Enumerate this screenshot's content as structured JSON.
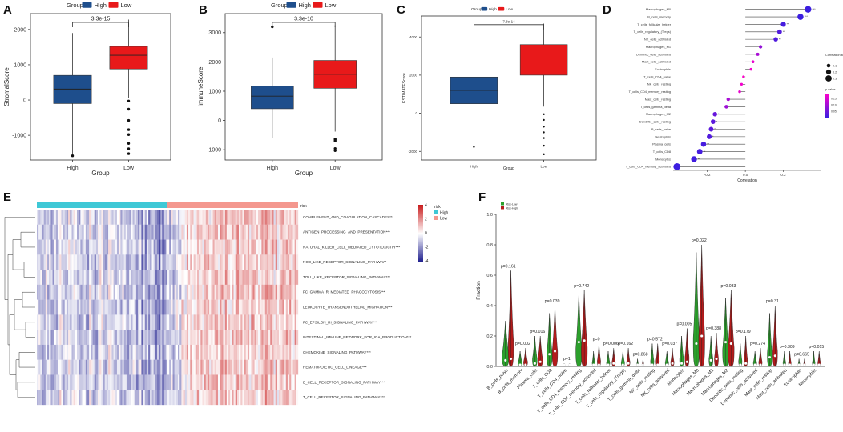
{
  "panels": {
    "A": "A",
    "B": "B",
    "C": "C",
    "D": "D",
    "E": "E",
    "F": "F"
  },
  "colors": {
    "high": "#1e4e8c",
    "low": "#e8191a",
    "heat_low": "#1a1a8c",
    "heat_mid": "#ffffff",
    "heat_high": "#c8191a",
    "risk_high": "#3ec8d6",
    "risk_low": "#f4978e",
    "violin_low": "#2ca02c",
    "violin_high": "#b31b1b",
    "pval_low": "#ff00cc",
    "pval_high": "#3b1ee0"
  },
  "legend": {
    "group_title": "Group",
    "high": "High",
    "low": "Low"
  },
  "chart_data": [
    {
      "id": "A",
      "type": "box",
      "title": "",
      "xlabel": "Group",
      "ylabel": "StromalScore",
      "categories": [
        "High",
        "Low"
      ],
      "ylim": [
        -1700,
        2450
      ],
      "yticks": [
        -1000,
        0,
        1000,
        2000
      ],
      "pvalue": "3.3e-15",
      "boxes": [
        {
          "name": "High",
          "q1": -100,
          "median": 310,
          "q3": 700,
          "whisker_low": -1550,
          "whisker_high": 1900,
          "outliers": [
            -1580
          ]
        },
        {
          "name": "Low",
          "q1": 880,
          "median": 1270,
          "q3": 1520,
          "whisker_low": 60,
          "whisker_high": 2280,
          "outliers": [
            -30,
            -260,
            -580,
            -840,
            -980,
            -1230,
            -1380,
            -1520
          ]
        }
      ]
    },
    {
      "id": "B",
      "type": "box",
      "xlabel": "Group",
      "ylabel": "ImmuneScore",
      "categories": [
        "High",
        "Low"
      ],
      "ylim": [
        -1350,
        3650
      ],
      "yticks": [
        -1000,
        0,
        1000,
        2000,
        3000
      ],
      "pvalue": "3.3e-10",
      "boxes": [
        {
          "name": "High",
          "q1": 400,
          "median": 830,
          "q3": 1170,
          "whisker_low": -600,
          "whisker_high": 2150,
          "outliers": [
            3200
          ]
        },
        {
          "name": "Low",
          "q1": 1100,
          "median": 1580,
          "q3": 2050,
          "whisker_low": -380,
          "whisker_high": 3250,
          "outliers": [
            -630,
            -660,
            -700,
            -960,
            -1030
          ]
        }
      ]
    },
    {
      "id": "C",
      "type": "box",
      "xlabel": "Group",
      "ylabel": "ESTIMATEScore",
      "categories": [
        "High",
        "Low"
      ],
      "ylim": [
        -2450,
        5100
      ],
      "yticks": [
        -2000,
        0,
        2000,
        4000
      ],
      "pvalue": "7.8e-14",
      "boxes": [
        {
          "name": "High",
          "q1": 500,
          "median": 1200,
          "q3": 1900,
          "whisker_low": -1100,
          "whisker_high": 3700,
          "outliers": [
            -1760
          ]
        },
        {
          "name": "Low",
          "q1": 2000,
          "median": 2900,
          "q3": 3600,
          "whisker_low": 350,
          "whisker_high": 4700,
          "outliers": [
            -50,
            -350,
            -700,
            -1000,
            -1300,
            -1700,
            -2150
          ]
        }
      ]
    },
    {
      "id": "D",
      "type": "lollipop",
      "xlabel": "Correlation",
      "xlim": [
        -0.38,
        0.4
      ],
      "xticks": [
        -0.2,
        0.0,
        0.2
      ],
      "xtick_labels": [
        "-0.2",
        "0.0",
        "0.2"
      ],
      "size_legend_title": "Correlation strength",
      "size_legend": [
        "0.1",
        "0.2",
        "0.3"
      ],
      "color_legend_title": "p-value",
      "color_legend": [
        "0.05",
        "0.10",
        "0.15"
      ],
      "items": [
        {
          "name": "Macrophages_M0",
          "r": 0.33,
          "p": 0.001,
          "sig": "***"
        },
        {
          "name": "B_cells_memory",
          "r": 0.29,
          "p": 0.001,
          "sig": "***"
        },
        {
          "name": "T_cells_follicular_helper",
          "r": 0.2,
          "p": 0.01,
          "sig": "**"
        },
        {
          "name": "T_cells_regulatory_(Tregs)",
          "r": 0.18,
          "p": 0.02,
          "sig": "**"
        },
        {
          "name": "NK_cells_activated",
          "r": 0.16,
          "p": 0.02,
          "sig": "**"
        },
        {
          "name": "Macrophages_M1",
          "r": 0.08,
          "p": 0.08,
          "sig": ""
        },
        {
          "name": "Dendritic_cells_activated",
          "r": 0.065,
          "p": 0.1,
          "sig": ""
        },
        {
          "name": "Mast_cells_activated",
          "r": 0.04,
          "p": 0.16,
          "sig": ""
        },
        {
          "name": "Eosinophils",
          "r": 0.03,
          "p": 0.17,
          "sig": ""
        },
        {
          "name": "T_cells_CD4_naive",
          "r": -0.01,
          "p": 0.18,
          "sig": ""
        },
        {
          "name": "NK_cells_resting",
          "r": -0.02,
          "p": 0.17,
          "sig": ""
        },
        {
          "name": "T_cells_CD4_memory_resting",
          "r": -0.03,
          "p": 0.16,
          "sig": ""
        },
        {
          "name": "Mast_cells_resting",
          "r": -0.09,
          "p": 0.1,
          "sig": ""
        },
        {
          "name": "T_cells_gamma_delta",
          "r": -0.1,
          "p": 0.09,
          "sig": ""
        },
        {
          "name": "Macrophages_M2",
          "r": -0.16,
          "p": 0.04,
          "sig": "*"
        },
        {
          "name": "Dendritic_cells_resting",
          "r": -0.17,
          "p": 0.03,
          "sig": "*"
        },
        {
          "name": "B_cells_naive",
          "r": -0.18,
          "p": 0.03,
          "sig": "*"
        },
        {
          "name": "Neutrophils",
          "r": -0.19,
          "p": 0.02,
          "sig": "*"
        },
        {
          "name": "Plasma_cells",
          "r": -0.22,
          "p": 0.01,
          "sig": "**"
        },
        {
          "name": "T_cells_CD8",
          "r": -0.24,
          "p": 0.01,
          "sig": "**"
        },
        {
          "name": "Monocytes",
          "r": -0.27,
          "p": 0.005,
          "sig": "**"
        },
        {
          "name": "T_cells_CD4_memory_activated",
          "r": -0.36,
          "p": 0.001,
          "sig": "***"
        }
      ]
    },
    {
      "id": "E",
      "type": "heatmap",
      "annotation_title": "risk",
      "annotation_legend": [
        "High",
        "Low"
      ],
      "colorbar_ticks": [
        "4",
        "2",
        "0",
        "-2",
        "-4"
      ],
      "rows": [
        "COMPLEMENT_AND_COAGULATION_CASCADES**",
        "ANTIGEN_PROCESSING_AND_PRESENTATION***",
        "NATURAL_KILLER_CELL_MEDIATED_CYTOTOXICITY***",
        "NOD_LIKE_RECEPTOR_SIGNALING_PATHWAY*",
        "TOLL_LIKE_RECEPTOR_SIGNALING_PATHWAY***",
        "FC_GAMMA_R_MEDIATED_PHAGOCYTOSIS***",
        "LEUKOCYTE_TRANSENDOTHELIAL_MIGRATION***",
        "FC_EPSILON_RI_SIGNALING_PATHWAY***",
        "INTESTINAL_IMMUNE_NETWORK_FOR_IGA_PRODUCTION***",
        "CHEMOKINE_SIGNALING_PATHWAY***",
        "HEMATOPOIETIC_CELL_LINEAGE***",
        "B_CELL_RECEPTOR_SIGNALING_PATHWAY***",
        "T_CELL_RECEPTOR_SIGNALING_PATHWAY***"
      ],
      "high_fraction": 0.5,
      "note": "left block (risk High) mostly blue, right block (risk Low) mostly red"
    },
    {
      "id": "F",
      "type": "violin",
      "ylabel": "Fraction",
      "ylim": [
        0,
        1.0
      ],
      "yticks": [
        "0.0",
        "0.2",
        "0.4",
        "0.6",
        "0.8",
        "1.0"
      ],
      "legend": [
        "Risk-Low",
        "Risk-High"
      ],
      "cells": [
        {
          "name": "B_cells_naive",
          "p": "p=0.161",
          "low": {
            "median": 0.04,
            "max": 0.3,
            "width": 1
          },
          "high": {
            "median": 0.05,
            "max": 0.63,
            "width": 0.8
          }
        },
        {
          "name": "B_cells_memory",
          "p": "p=0.002",
          "low": {
            "median": 0.0,
            "max": 0.1,
            "width": 0.6
          },
          "high": {
            "median": 0.01,
            "max": 0.12,
            "width": 0.6
          }
        },
        {
          "name": "Plasma_cells",
          "p": "p=0.016",
          "low": {
            "median": 0.02,
            "max": 0.2,
            "width": 0.7
          },
          "high": {
            "median": 0.03,
            "max": 0.2,
            "width": 0.7
          }
        },
        {
          "name": "T_cells_CD8",
          "p": "p=0.039",
          "low": {
            "median": 0.08,
            "max": 0.35,
            "width": 0.8
          },
          "high": {
            "median": 0.1,
            "max": 0.4,
            "width": 0.8
          }
        },
        {
          "name": "T_cells_CD4_naive",
          "p": "p=1",
          "low": {
            "median": 0.0,
            "max": 0.02,
            "width": 0.3
          },
          "high": {
            "median": 0.0,
            "max": 0.02,
            "width": 0.3
          }
        },
        {
          "name": "T_cells_CD4_memory_resting",
          "p": "p=0.742",
          "low": {
            "median": 0.16,
            "max": 0.48,
            "width": 0.9
          },
          "high": {
            "median": 0.17,
            "max": 0.5,
            "width": 0.9
          }
        },
        {
          "name": "T_cells_CD4_memory_activated",
          "p": "p=0",
          "low": {
            "median": 0.0,
            "max": 0.1,
            "width": 0.4
          },
          "high": {
            "median": 0.01,
            "max": 0.15,
            "width": 0.5
          }
        },
        {
          "name": "T_cells_follicular_helper",
          "p": "p=0.006",
          "low": {
            "median": 0.01,
            "max": 0.1,
            "width": 0.5
          },
          "high": {
            "median": 0.02,
            "max": 0.12,
            "width": 0.5
          }
        },
        {
          "name": "T_cells_regulatory_(Tregs)",
          "p": "p=0.162",
          "low": {
            "median": 0.01,
            "max": 0.1,
            "width": 0.5
          },
          "high": {
            "median": 0.02,
            "max": 0.12,
            "width": 0.5
          }
        },
        {
          "name": "T_cells_gamma_delta",
          "p": "p=0.868",
          "low": {
            "median": 0.0,
            "max": 0.05,
            "width": 0.3
          },
          "high": {
            "median": 0.0,
            "max": 0.05,
            "width": 0.3
          }
        },
        {
          "name": "NK_cells_resting",
          "p": "p=0.572",
          "low": {
            "median": 0.01,
            "max": 0.15,
            "width": 0.5
          },
          "high": {
            "median": 0.01,
            "max": 0.15,
            "width": 0.5
          }
        },
        {
          "name": "NK_cells_activated",
          "p": "p=0.037",
          "low": {
            "median": 0.01,
            "max": 0.1,
            "width": 0.5
          },
          "high": {
            "median": 0.02,
            "max": 0.12,
            "width": 0.5
          }
        },
        {
          "name": "Monocytes",
          "p": "p=0.005",
          "low": {
            "median": 0.02,
            "max": 0.2,
            "width": 0.6
          },
          "high": {
            "median": 0.03,
            "max": 0.25,
            "width": 0.6
          }
        },
        {
          "name": "Macrophages_M0",
          "p": "p=0.022",
          "low": {
            "median": 0.15,
            "max": 0.75,
            "width": 0.9
          },
          "high": {
            "median": 0.2,
            "max": 0.8,
            "width": 0.9
          }
        },
        {
          "name": "Macrophages_M1",
          "p": "p=0.388",
          "low": {
            "median": 0.04,
            "max": 0.2,
            "width": 0.6
          },
          "high": {
            "median": 0.05,
            "max": 0.22,
            "width": 0.6
          }
        },
        {
          "name": "Macrophages_M2",
          "p": "p=0.033",
          "low": {
            "median": 0.16,
            "max": 0.45,
            "width": 0.9
          },
          "high": {
            "median": 0.15,
            "max": 0.5,
            "width": 0.9
          }
        },
        {
          "name": "Dendritic_cells_resting",
          "p": "p=0.179",
          "low": {
            "median": 0.01,
            "max": 0.15,
            "width": 0.5
          },
          "high": {
            "median": 0.02,
            "max": 0.2,
            "width": 0.5
          }
        },
        {
          "name": "Dendritic_cells_activated",
          "p": "p=0.274",
          "low": {
            "median": 0.01,
            "max": 0.1,
            "width": 0.5
          },
          "high": {
            "median": 0.01,
            "max": 0.12,
            "width": 0.5
          }
        },
        {
          "name": "Mast_cells_resting",
          "p": "p=0.31",
          "low": {
            "median": 0.06,
            "max": 0.35,
            "width": 0.7
          },
          "high": {
            "median": 0.07,
            "max": 0.4,
            "width": 0.7
          }
        },
        {
          "name": "Mast_cells_activated",
          "p": "p=0.309",
          "low": {
            "median": 0.0,
            "max": 0.1,
            "width": 0.4
          },
          "high": {
            "median": 0.0,
            "max": 0.1,
            "width": 0.4
          }
        },
        {
          "name": "Eosinophils",
          "p": "p=0.665",
          "low": {
            "median": 0.0,
            "max": 0.05,
            "width": 0.3
          },
          "high": {
            "median": 0.0,
            "max": 0.05,
            "width": 0.3
          }
        },
        {
          "name": "Neutrophils",
          "p": "p=0.015",
          "low": {
            "median": 0.01,
            "max": 0.1,
            "width": 0.4
          },
          "high": {
            "median": 0.01,
            "max": 0.1,
            "width": 0.4
          }
        }
      ]
    }
  ]
}
